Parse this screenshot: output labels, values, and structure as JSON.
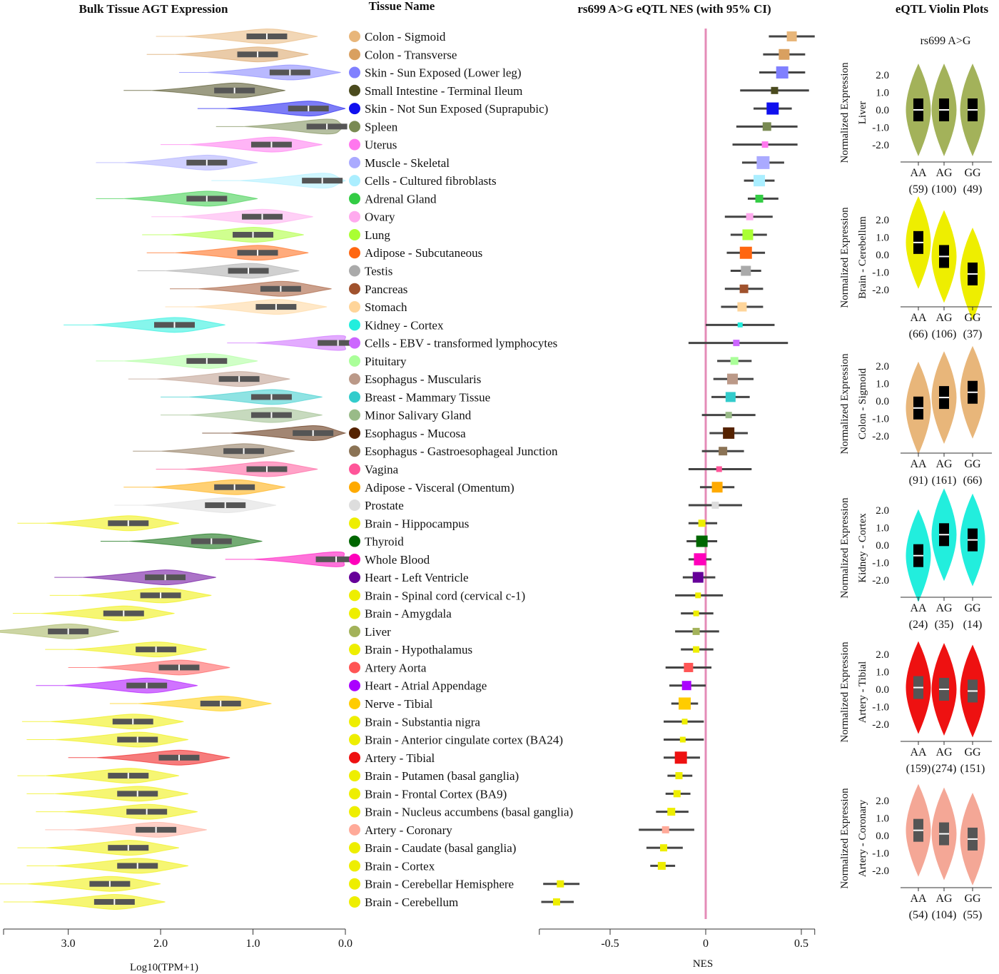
{
  "titles": {
    "left": "Bulk Tissue AGT Expression",
    "tissue": "Tissue Name",
    "eqtl": "rs699 A>G eQTL NES (with 95% CI)",
    "violin": "eQTL Violin Plots"
  },
  "axes": {
    "left_xlabel": "Log10(TPM+1)",
    "left_ticks": [
      "3.0",
      "2.0",
      "1.0",
      "0.0"
    ],
    "eqtl_xlabel": "NES",
    "eqtl_ticks": [
      "-0.5",
      "0",
      "0.5"
    ]
  },
  "violin_panel": {
    "subtitle": "rs699 A>G",
    "ylabel": "Normalized Expression",
    "yticks": [
      "2.0",
      "1.0",
      "0.0",
      "-1.0",
      "-2.0"
    ],
    "genotypes": [
      "AA",
      "AG",
      "GG"
    ],
    "plots": [
      {
        "tissue": "Liver",
        "color": "#a3b25a",
        "counts": [
          "(59)",
          "(100)",
          "(49)"
        ],
        "medians": [
          0.0,
          0.0,
          0.0
        ]
      },
      {
        "tissue": "Brain - Cerebellum",
        "color": "#eeee00",
        "counts": [
          "(66)",
          "(106)",
          "(37)"
        ],
        "medians": [
          0.7,
          -0.1,
          -1.1
        ]
      },
      {
        "tissue": "Colon - Sigmoid",
        "color": "#e8b67a",
        "counts": [
          "(91)",
          "(161)",
          "(66)"
        ],
        "medians": [
          -0.4,
          0.2,
          0.5
        ]
      },
      {
        "tissue": "Kidney - Cortex",
        "color": "#22eedd",
        "counts": [
          "(24)",
          "(35)",
          "(14)"
        ],
        "medians": [
          -0.6,
          0.6,
          0.3
        ]
      },
      {
        "tissue": "Artery - Tibial",
        "color": "#ee1111",
        "counts": [
          "(159)",
          "(274)",
          "(151)"
        ],
        "medians": [
          0.1,
          0.0,
          -0.1
        ]
      },
      {
        "tissue": "Artery - Coronary",
        "color": "#f4a796",
        "counts": [
          "(54)",
          "(104)",
          "(55)"
        ],
        "medians": [
          0.3,
          0.1,
          -0.2
        ]
      }
    ]
  },
  "chart_data": [
    {
      "type": "violin",
      "title": "Bulk Tissue AGT Expression",
      "xlabel": "Log10(TPM+1)",
      "xlim": [
        3.7,
        0.0
      ],
      "categories": [
        "Colon - Sigmoid",
        "Colon - Transverse",
        "Skin - Sun Exposed (Lower leg)",
        "Small Intestine - Terminal Ileum",
        "Skin - Not Sun Exposed (Suprapubic)",
        "Spleen",
        "Uterus",
        "Muscle - Skeletal",
        "Cells - Cultured fibroblasts",
        "Adrenal Gland",
        "Ovary",
        "Lung",
        "Adipose - Subcutaneous",
        "Testis",
        "Pancreas",
        "Stomach",
        "Kidney - Cortex",
        "Cells - EBV - transformed lymphocytes",
        "Pituitary",
        "Esophagus - Muscularis",
        "Breast - Mammary Tissue",
        "Minor Salivary Gland",
        "Esophagus - Mucosa",
        "Esophagus - Gastroesophageal Junction",
        "Vagina",
        "Adipose - Visceral (Omentum)",
        "Prostate",
        "Brain - Hippocampus",
        "Thyroid",
        "Whole Blood",
        "Heart - Left Ventricle",
        "Brain - Spinal cord (cervical c-1)",
        "Brain - Amygdala",
        "Liver",
        "Brain - Hypothalamus",
        "Artery Aorta",
        "Heart - Atrial Appendage",
        "Nerve - Tibial",
        "Brain - Substantia nigra",
        "Brain - Anterior cingulate cortex (BA24)",
        "Artery - Tibial",
        "Brain - Putamen (basal ganglia)",
        "Brain - Frontal Cortex (BA9)",
        "Brain - Nucleus accumbens (basal ganglia)",
        "Artery - Coronary",
        "Brain - Caudate (basal ganglia)",
        "Brain - Cortex",
        "Brain - Cerebellar Hemisphere",
        "Brain - Cerebellum"
      ],
      "colors": [
        "#e8b67a",
        "#d9a060",
        "#8080ff",
        "#4b4b1e",
        "#1010ee",
        "#798a52",
        "#ff77ee",
        "#aaaaff",
        "#aaeeff",
        "#33cc44",
        "#ffaaee",
        "#aaff33",
        "#ff6611",
        "#aaaaaa",
        "#a0522d",
        "#ffd59a",
        "#22eedd",
        "#cc66ff",
        "#aaff99",
        "#bb9988",
        "#33cccc",
        "#99bb88",
        "#552200",
        "#8b7355",
        "#ff5599",
        "#ffaa00",
        "#dddddd",
        "#eeee00",
        "#006600",
        "#ff00bb",
        "#660099",
        "#eeee00",
        "#eeee00",
        "#a3b25a",
        "#eeee00",
        "#ff5555",
        "#aa00ff",
        "#ffcc00",
        "#eeee00",
        "#eeee00",
        "#ee1111",
        "#eeee00",
        "#eeee00",
        "#eeee00",
        "#ffaa99",
        "#eeee00",
        "#eeee00",
        "#eeee00",
        "#eeee00"
      ],
      "medians": [
        0.85,
        0.95,
        0.6,
        1.2,
        0.4,
        0.2,
        0.8,
        1.5,
        0.25,
        1.5,
        0.9,
        1.0,
        0.95,
        1.05,
        0.7,
        0.75,
        1.85,
        0.08,
        1.5,
        1.15,
        0.8,
        0.8,
        0.35,
        1.1,
        0.85,
        1.2,
        1.3,
        2.35,
        1.45,
        0.1,
        1.95,
        2.0,
        2.4,
        3.0,
        2.05,
        1.8,
        2.15,
        1.35,
        2.3,
        2.25,
        1.8,
        2.35,
        2.25,
        2.15,
        2.05,
        2.35,
        2.25,
        2.55,
        2.5
      ]
    },
    {
      "type": "forest",
      "title": "rs699 A>G eQTL NES (with 95% CI)",
      "xlabel": "NES",
      "xlim": [
        -0.87,
        0.57
      ],
      "categories": [
        "Colon - Sigmoid",
        "Colon - Transverse",
        "Skin - Sun Exposed (Lower leg)",
        "Small Intestine - Terminal Ileum",
        "Skin - Not Sun Exposed (Suprapubic)",
        "Spleen",
        "Uterus",
        "Muscle - Skeletal",
        "Cells - Cultured fibroblasts",
        "Adrenal Gland",
        "Ovary",
        "Lung",
        "Adipose - Subcutaneous",
        "Testis",
        "Pancreas",
        "Stomach",
        "Kidney - Cortex",
        "Cells - EBV - transformed lymphocytes",
        "Pituitary",
        "Esophagus - Muscularis",
        "Breast - Mammary Tissue",
        "Minor Salivary Gland",
        "Esophagus - Mucosa",
        "Esophagus - Gastroesophageal Junction",
        "Vagina",
        "Adipose - Visceral (Omentum)",
        "Prostate",
        "Brain - Hippocampus",
        "Thyroid",
        "Whole Blood",
        "Heart - Left Ventricle",
        "Brain - Spinal cord (cervical c-1)",
        "Brain - Amygdala",
        "Liver",
        "Brain - Hypothalamus",
        "Artery Aorta",
        "Heart - Atrial Appendage",
        "Nerve - Tibial",
        "Brain - Substantia nigra",
        "Brain - Anterior cingulate cortex (BA24)",
        "Artery - Tibial",
        "Brain - Putamen (basal ganglia)",
        "Brain - Frontal Cortex (BA9)",
        "Brain - Nucleus accumbens (basal ganglia)",
        "Artery - Coronary",
        "Brain - Caudate (basal ganglia)",
        "Brain - Cortex",
        "Brain - Cerebellar Hemisphere",
        "Brain - Cerebellum"
      ],
      "nes": [
        0.45,
        0.41,
        0.4,
        0.36,
        0.35,
        0.32,
        0.31,
        0.3,
        0.28,
        0.28,
        0.23,
        0.22,
        0.21,
        0.21,
        0.2,
        0.19,
        0.18,
        0.16,
        0.15,
        0.14,
        0.13,
        0.12,
        0.12,
        0.09,
        0.07,
        0.06,
        0.05,
        -0.02,
        -0.02,
        -0.03,
        -0.04,
        -0.04,
        -0.05,
        -0.05,
        -0.05,
        -0.09,
        -0.1,
        -0.11,
        -0.11,
        -0.12,
        -0.13,
        -0.14,
        -0.15,
        -0.18,
        -0.21,
        -0.22,
        -0.23,
        -0.76,
        -0.78
      ],
      "ci_low": [
        0.33,
        0.3,
        0.28,
        0.18,
        0.25,
        0.16,
        0.14,
        0.19,
        0.2,
        0.22,
        0.1,
        0.13,
        0.11,
        0.13,
        0.1,
        0.08,
        0.0,
        -0.09,
        0.06,
        0.04,
        0.03,
        -0.02,
        0.02,
        -0.02,
        -0.09,
        -0.03,
        -0.09,
        -0.09,
        -0.1,
        -0.09,
        -0.12,
        -0.16,
        -0.13,
        -0.16,
        -0.13,
        -0.21,
        -0.19,
        -0.18,
        -0.22,
        -0.22,
        -0.22,
        -0.2,
        -0.21,
        -0.26,
        -0.35,
        -0.31,
        -0.29,
        -0.85,
        -0.86
      ],
      "ci_high": [
        0.57,
        0.52,
        0.52,
        0.54,
        0.45,
        0.48,
        0.48,
        0.41,
        0.36,
        0.38,
        0.35,
        0.32,
        0.31,
        0.29,
        0.3,
        0.3,
        0.36,
        0.43,
        0.24,
        0.25,
        0.23,
        0.26,
        0.22,
        0.2,
        0.24,
        0.15,
        0.19,
        0.06,
        0.06,
        0.03,
        0.05,
        0.09,
        0.04,
        0.07,
        0.04,
        0.03,
        0.0,
        -0.04,
        -0.01,
        -0.01,
        -0.03,
        -0.07,
        -0.08,
        -0.09,
        -0.06,
        -0.12,
        -0.16,
        -0.66,
        -0.69
      ],
      "marker_size": [
        14,
        15,
        17,
        10,
        17,
        12,
        9,
        18,
        16,
        11,
        10,
        15,
        17,
        14,
        12,
        13,
        7,
        9,
        11,
        15,
        14,
        9,
        16,
        12,
        8,
        15,
        10,
        10,
        16,
        17,
        15,
        8,
        8,
        10,
        9,
        13,
        13,
        17,
        8,
        8,
        17,
        10,
        10,
        11,
        10,
        10,
        11,
        10,
        10
      ]
    }
  ]
}
